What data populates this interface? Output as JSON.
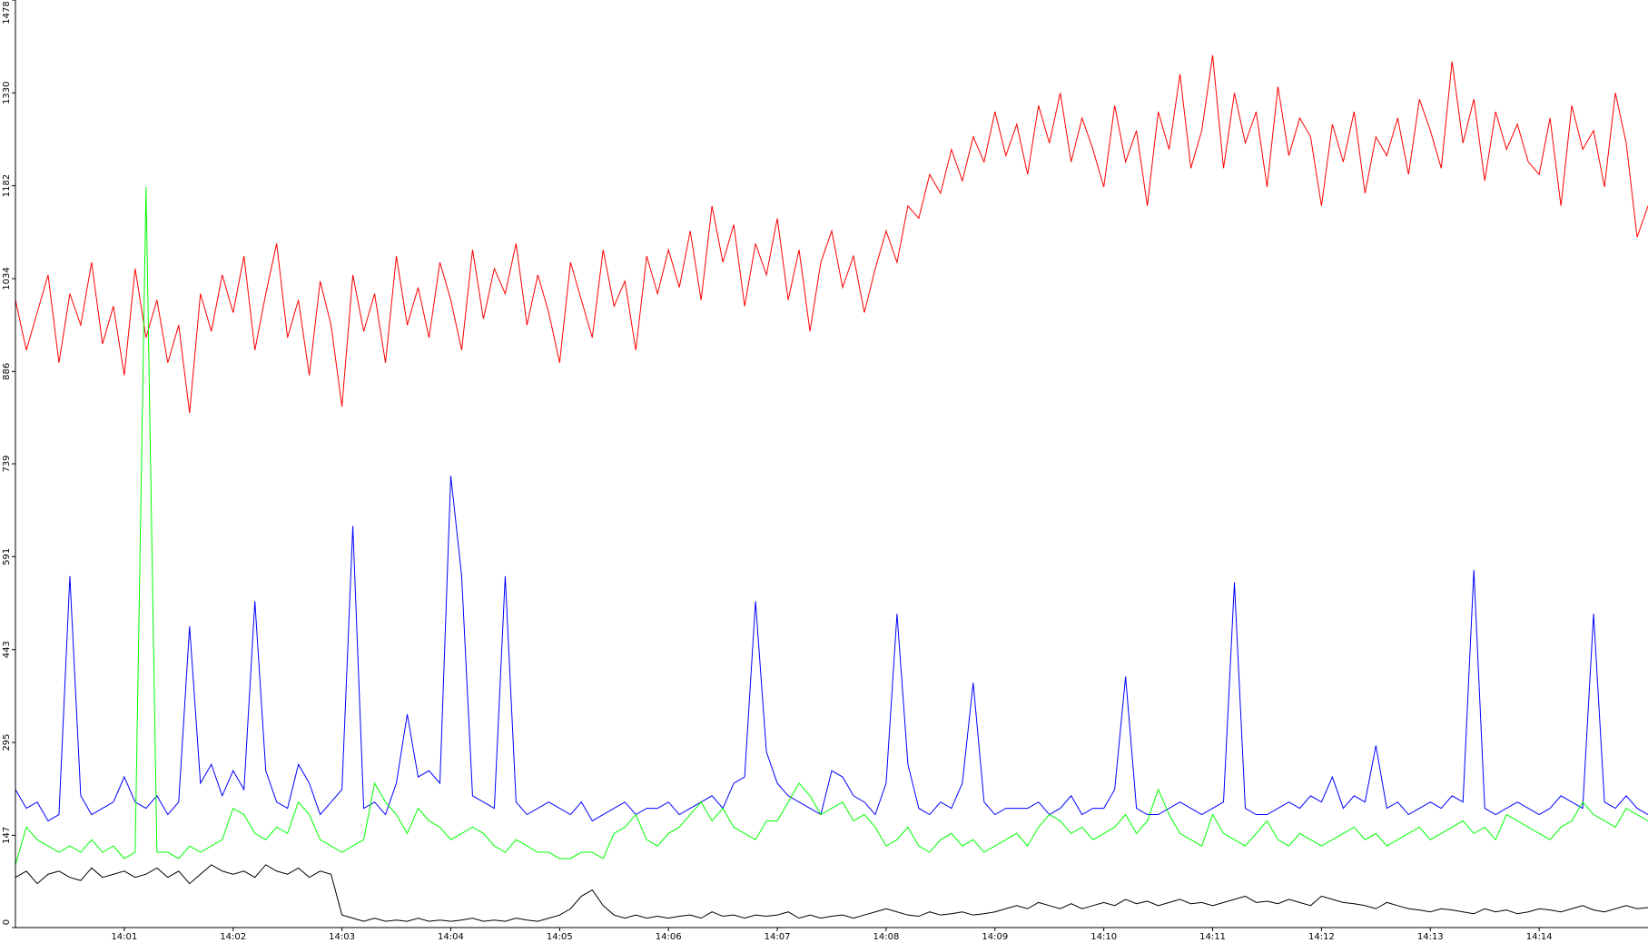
{
  "chart_data": {
    "type": "line",
    "x": [
      0,
      0.1,
      0.2,
      0.3,
      0.4,
      0.5,
      0.6,
      0.7,
      0.8,
      0.9,
      1,
      1.1,
      1.2,
      1.3,
      1.4,
      1.5,
      1.6,
      1.7,
      1.8,
      1.9,
      2,
      2.1,
      2.2,
      2.3,
      2.4,
      2.5,
      2.6,
      2.7,
      2.8,
      2.9,
      3,
      3.1,
      3.2,
      3.3,
      3.4,
      3.5,
      3.6,
      3.7,
      3.8,
      3.9,
      4,
      4.1,
      4.2,
      4.3,
      4.4,
      4.5,
      4.6,
      4.7,
      4.8,
      4.9,
      5,
      5.1,
      5.2,
      5.3,
      5.4,
      5.5,
      5.6,
      5.7,
      5.8,
      5.9,
      6,
      6.1,
      6.2,
      6.3,
      6.4,
      6.5,
      6.6,
      6.7,
      6.8,
      6.9,
      7,
      7.1,
      7.2,
      7.3,
      7.4,
      7.5,
      7.6,
      7.7,
      7.8,
      7.9,
      8,
      8.1,
      8.2,
      8.3,
      8.4,
      8.5,
      8.6,
      8.7,
      8.8,
      8.9,
      9,
      9.1,
      9.2,
      9.3,
      9.4,
      9.5,
      9.6,
      9.7,
      9.8,
      9.9,
      10,
      10.1,
      10.2,
      10.3,
      10.4,
      10.5,
      10.6,
      10.7,
      10.8,
      10.9,
      11,
      11.1,
      11.2,
      11.3,
      11.4,
      11.5,
      11.6,
      11.7,
      11.8,
      11.9,
      12,
      12.1,
      12.2,
      12.3,
      12.4,
      12.5,
      12.6,
      12.7,
      12.8,
      12.9,
      13,
      13.1,
      13.2,
      13.3,
      13.4,
      13.5,
      13.6,
      13.7,
      13.8,
      13.9,
      14,
      14.1,
      14.2,
      14.3,
      14.4,
      14.5,
      14.6,
      14.7,
      14.8,
      14.9,
      15
    ],
    "series": [
      {
        "color": "#ff0000",
        "values": [
          1000,
          920,
          980,
          1040,
          900,
          1010,
          960,
          1060,
          930,
          990,
          880,
          1050,
          940,
          1000,
          900,
          960,
          820,
          1010,
          950,
          1040,
          980,
          1070,
          920,
          1010,
          1090,
          940,
          1000,
          880,
          1030,
          960,
          830,
          1040,
          950,
          1010,
          900,
          1070,
          960,
          1020,
          940,
          1060,
          1000,
          920,
          1080,
          970,
          1050,
          1010,
          1090,
          960,
          1040,
          980,
          900,
          1060,
          1000,
          940,
          1080,
          990,
          1030,
          920,
          1070,
          1010,
          1080,
          1020,
          1110,
          1000,
          1150,
          1060,
          1120,
          990,
          1090,
          1040,
          1130,
          1000,
          1080,
          950,
          1060,
          1110,
          1020,
          1070,
          980,
          1050,
          1110,
          1060,
          1150,
          1130,
          1200,
          1170,
          1240,
          1190,
          1260,
          1220,
          1300,
          1230,
          1280,
          1200,
          1310,
          1250,
          1330,
          1220,
          1290,
          1240,
          1180,
          1310,
          1220,
          1270,
          1150,
          1300,
          1240,
          1360,
          1210,
          1270,
          1390,
          1210,
          1330,
          1250,
          1300,
          1180,
          1340,
          1230,
          1290,
          1260,
          1150,
          1280,
          1220,
          1300,
          1170,
          1260,
          1230,
          1290,
          1200,
          1320,
          1270,
          1210,
          1380,
          1250,
          1320,
          1190,
          1300,
          1240,
          1280,
          1220,
          1200,
          1290,
          1150,
          1310,
          1240,
          1270,
          1180,
          1330,
          1250,
          1100,
          1150
        ]
      },
      {
        "color": "#0000ff",
        "values": [
          220,
          190,
          200,
          170,
          180,
          560,
          210,
          180,
          190,
          200,
          240,
          200,
          190,
          210,
          180,
          200,
          480,
          230,
          260,
          210,
          250,
          220,
          520,
          250,
          200,
          190,
          260,
          230,
          180,
          200,
          220,
          640,
          190,
          200,
          180,
          230,
          340,
          240,
          250,
          230,
          720,
          560,
          210,
          200,
          190,
          560,
          200,
          180,
          190,
          200,
          190,
          180,
          200,
          170,
          180,
          190,
          200,
          180,
          190,
          190,
          200,
          180,
          190,
          200,
          210,
          190,
          230,
          240,
          520,
          280,
          230,
          210,
          200,
          190,
          180,
          250,
          240,
          210,
          200,
          180,
          230,
          500,
          260,
          190,
          180,
          200,
          190,
          230,
          390,
          200,
          180,
          190,
          190,
          190,
          200,
          180,
          190,
          210,
          180,
          190,
          190,
          220,
          400,
          190,
          180,
          180,
          190,
          200,
          190,
          180,
          190,
          200,
          550,
          190,
          180,
          180,
          190,
          200,
          190,
          210,
          200,
          240,
          190,
          210,
          200,
          290,
          190,
          200,
          180,
          190,
          200,
          190,
          210,
          200,
          570,
          190,
          180,
          190,
          200,
          190,
          180,
          190,
          210,
          200,
          190,
          500,
          200,
          190,
          210,
          190,
          180
        ]
      },
      {
        "color": "#00ff00",
        "values": [
          100,
          160,
          140,
          130,
          120,
          130,
          120,
          140,
          120,
          130,
          110,
          120,
          1180,
          120,
          120,
          110,
          130,
          120,
          130,
          140,
          190,
          180,
          150,
          140,
          160,
          150,
          200,
          180,
          140,
          130,
          120,
          130,
          140,
          230,
          200,
          180,
          150,
          190,
          170,
          160,
          140,
          150,
          160,
          150,
          130,
          120,
          140,
          130,
          120,
          120,
          110,
          110,
          120,
          120,
          110,
          150,
          160,
          180,
          140,
          130,
          150,
          160,
          180,
          200,
          170,
          190,
          160,
          150,
          140,
          170,
          170,
          200,
          230,
          210,
          180,
          190,
          200,
          170,
          180,
          160,
          130,
          140,
          160,
          130,
          120,
          140,
          150,
          130,
          140,
          120,
          130,
          140,
          150,
          130,
          160,
          180,
          170,
          150,
          160,
          140,
          150,
          160,
          180,
          150,
          170,
          220,
          180,
          150,
          140,
          130,
          180,
          150,
          140,
          130,
          150,
          170,
          140,
          130,
          150,
          140,
          130,
          140,
          150,
          160,
          140,
          150,
          130,
          140,
          150,
          160,
          140,
          150,
          160,
          170,
          150,
          160,
          140,
          180,
          170,
          160,
          150,
          140,
          160,
          170,
          200,
          180,
          170,
          160,
          190,
          180,
          170
        ]
      },
      {
        "color": "#000000",
        "values": [
          80,
          90,
          70,
          85,
          90,
          80,
          75,
          95,
          80,
          85,
          90,
          80,
          85,
          95,
          80,
          90,
          70,
          85,
          100,
          90,
          85,
          90,
          80,
          100,
          90,
          85,
          95,
          80,
          90,
          85,
          20,
          15,
          10,
          15,
          10,
          12,
          10,
          15,
          10,
          12,
          10,
          12,
          15,
          10,
          12,
          10,
          15,
          12,
          10,
          15,
          20,
          30,
          50,
          60,
          35,
          20,
          15,
          20,
          15,
          18,
          15,
          18,
          20,
          15,
          25,
          18,
          20,
          15,
          20,
          18,
          20,
          25,
          15,
          20,
          15,
          18,
          20,
          15,
          20,
          25,
          30,
          25,
          20,
          18,
          25,
          20,
          22,
          25,
          20,
          22,
          25,
          30,
          35,
          30,
          40,
          35,
          30,
          38,
          30,
          35,
          40,
          35,
          45,
          38,
          42,
          35,
          40,
          45,
          38,
          40,
          35,
          40,
          45,
          50,
          40,
          42,
          38,
          45,
          40,
          35,
          50,
          45,
          40,
          38,
          35,
          30,
          40,
          35,
          30,
          28,
          25,
          30,
          28,
          25,
          22,
          30,
          25,
          28,
          22,
          25,
          30,
          28,
          25,
          30,
          35,
          28,
          25,
          30,
          35,
          30,
          32
        ]
      }
    ],
    "xlim": [
      0,
      15
    ],
    "xticks": [
      {
        "value": 1,
        "label": "14:01"
      },
      {
        "value": 2,
        "label": "14:02"
      },
      {
        "value": 3,
        "label": "14:03"
      },
      {
        "value": 4,
        "label": "14:04"
      },
      {
        "value": 5,
        "label": "14:05"
      },
      {
        "value": 6,
        "label": "14:06"
      },
      {
        "value": 7,
        "label": "14:07"
      },
      {
        "value": 8,
        "label": "14:08"
      },
      {
        "value": 9,
        "label": "14:09"
      },
      {
        "value": 10,
        "label": "14:10"
      },
      {
        "value": 11,
        "label": "14:11"
      },
      {
        "value": 12,
        "label": "14:12"
      },
      {
        "value": 13,
        "label": "14:13"
      },
      {
        "value": 14,
        "label": "14:14"
      }
    ],
    "ylim": [
      0,
      1478
    ],
    "yticks": [
      0,
      147,
      295,
      443,
      591,
      739,
      886,
      1034,
      1182,
      1330,
      1478
    ]
  }
}
